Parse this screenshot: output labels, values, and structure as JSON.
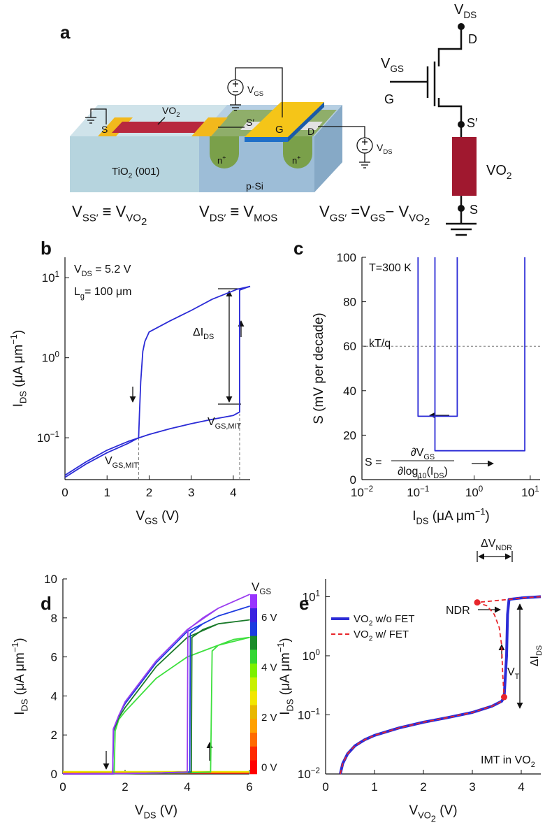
{
  "panel_a": {
    "label": "a",
    "device_labels": {
      "vo2": [
        "VO",
        {
          "sub": "2"
        }
      ],
      "s": "S",
      "s_prime": "S′",
      "g": "G",
      "d": "D",
      "substrate": [
        "TiO",
        {
          "sub": "2"
        },
        " (001)"
      ],
      "silicon": "p-Si",
      "n_left": [
        "n",
        {
          "sup": "+"
        }
      ],
      "n_right": [
        "n",
        {
          "sup": "+"
        }
      ],
      "vgs": [
        "V",
        {
          "sub": "GS"
        }
      ],
      "vds": [
        "V",
        {
          "sub": "DS"
        }
      ]
    },
    "equations": [
      [
        "V",
        {
          "sub": "SS′"
        },
        " ≡ V",
        {
          "sub": "VO"
        },
        {
          "sub2": "2"
        }
      ],
      [
        "V",
        {
          "sub": "DS′"
        },
        " ≡ V",
        {
          "sub": "MOS"
        }
      ],
      [
        "V",
        {
          "sub": "GS′"
        },
        " =V",
        {
          "sub": "GS"
        },
        "− V",
        {
          "sub": "VO"
        },
        {
          "sub2": "2"
        }
      ]
    ],
    "circuit": {
      "vds": [
        "V",
        {
          "sub": "DS"
        }
      ],
      "d": "D",
      "vgs": [
        "V",
        {
          "sub": "GS"
        }
      ],
      "g": "G",
      "s_prime": "S′",
      "vo2": [
        "VO",
        {
          "sub": "2"
        }
      ],
      "s": "S"
    }
  },
  "chart_data": [
    {
      "type": "line",
      "panel_label": "b",
      "xlabel": [
        "V",
        {
          "sub": "GS"
        },
        " (V)"
      ],
      "ylabel": [
        "I",
        {
          "sub": "DS"
        },
        " (μA μm",
        {
          "sup": "−1"
        },
        ")"
      ],
      "xlim": [
        0,
        4.4
      ],
      "xticks": [
        0,
        1,
        2,
        3,
        4
      ],
      "ylog": true,
      "ylim": [
        0.03,
        18
      ],
      "yticks": [
        {
          "value": 0.1,
          "label": [
            "10",
            {
              "sup": "−1"
            }
          ]
        },
        {
          "value": 1,
          "label": [
            "10",
            {
              "sup": "0"
            }
          ]
        },
        {
          "value": 10,
          "label": [
            "10",
            {
              "sup": "1"
            }
          ]
        }
      ],
      "series": [
        {
          "color": "#2b2bd6",
          "x": [
            0,
            0.5,
            1,
            1.5,
            2,
            2.5,
            3,
            3.5,
            4,
            4.15,
            4.15,
            4.3,
            4.4
          ],
          "values": [
            0.034,
            0.05,
            0.07,
            0.09,
            0.11,
            0.13,
            0.15,
            0.17,
            0.19,
            0.21,
            7.0,
            7.5,
            7.8
          ]
        },
        {
          "color": "#2b2bd6",
          "x": [
            4.4,
            4.1,
            3.5,
            3,
            2.5,
            2,
            1.9,
            1.85,
            1.8,
            1.77,
            1.75,
            1.5,
            1,
            0.5,
            0
          ],
          "values": [
            7.8,
            7.2,
            5.4,
            3.9,
            2.9,
            2.1,
            1.6,
            1.2,
            0.5,
            0.2,
            0.1,
            0.085,
            0.065,
            0.047,
            0.032
          ]
        }
      ],
      "guides": [
        {
          "x": 1.75,
          "y": 0.1
        },
        {
          "x": 4.15,
          "y": 0.2
        }
      ],
      "annotations": [
        [
          "V",
          {
            "sub": "DS"
          },
          " = 5.2 V"
        ],
        [
          "L",
          {
            "sub": "g"
          },
          "= 100 μm"
        ],
        [
          "ΔI",
          {
            "sub": "DS"
          }
        ],
        [
          "V",
          {
            "sub": "GS,MIT"
          }
        ],
        [
          "V",
          {
            "sub": "GS,MIT"
          }
        ]
      ]
    },
    {
      "type": "line",
      "panel_label": "c",
      "xlabel": [
        "I",
        {
          "sub": "DS"
        },
        " (μA μm",
        {
          "sup": "−1"
        },
        ")"
      ],
      "ylabel": [
        "S",
        " (mV per decade)"
      ],
      "xlog": true,
      "xlim": [
        0.01,
        15
      ],
      "xticks": [
        {
          "value": 0.01,
          "label": [
            "10",
            {
              "sup": "−2"
            }
          ]
        },
        {
          "value": 0.1,
          "label": [
            "10",
            {
              "sup": "−1"
            }
          ]
        },
        {
          "value": 1,
          "label": [
            "10",
            {
              "sup": "0"
            }
          ]
        },
        {
          "value": 10,
          "label": [
            "10",
            {
              "sup": "1"
            }
          ]
        }
      ],
      "ylim": [
        0,
        100
      ],
      "yticks": [
        0,
        20,
        40,
        60,
        80,
        100
      ],
      "hline": 60,
      "series": [
        {
          "color": "#2b2bd6",
          "x": [
            0.1,
            0.1,
            0.5,
            0.5
          ],
          "values": [
            100,
            28.5,
            28.5,
            100
          ]
        },
        {
          "color": "#2b2bd6",
          "x": [
            0.2,
            0.2,
            8,
            8
          ],
          "values": [
            100,
            13,
            13,
            100
          ]
        }
      ],
      "annotations": [
        "T=300 K",
        "kT/q"
      ],
      "formula": {
        "lhs": "S =",
        "numerator": [
          "∂V",
          {
            "sub": "GS"
          }
        ],
        "denominator": [
          "∂log",
          {
            "sub": "10"
          },
          "(I",
          {
            "sub": "DS"
          },
          ")"
        ]
      }
    },
    {
      "type": "line",
      "panel_label": "d",
      "xlabel": [
        "V",
        {
          "sub": "DS"
        },
        " (V)"
      ],
      "ylabel": [
        "I",
        {
          "sub": "DS"
        },
        " (μA μm",
        {
          "sup": "−1"
        },
        ")"
      ],
      "xlim": [
        0,
        6
      ],
      "xticks": [
        0,
        2,
        4,
        6
      ],
      "ylim": [
        0,
        10
      ],
      "yticks": [
        0,
        2,
        4,
        6,
        8,
        10
      ],
      "series": [
        {
          "color": "#ff2020",
          "x": [
            0,
            6
          ],
          "values": [
            0.04,
            0.04
          ]
        },
        {
          "color": "#ff9900",
          "x": [
            0,
            6
          ],
          "values": [
            0.08,
            0.08
          ]
        },
        {
          "color": "#e6e600",
          "x": [
            0,
            6
          ],
          "values": [
            0.12,
            0.12
          ]
        },
        {
          "color": "#3ee03e",
          "x": [
            0,
            2,
            3,
            4,
            4.75,
            4.8,
            5,
            5.5,
            6,
            5,
            4,
            3,
            2,
            1.8,
            1.68,
            1.65,
            1,
            0
          ],
          "values": [
            0,
            0.02,
            0.04,
            0.06,
            0.1,
            6.3,
            6.6,
            6.9,
            7.0,
            6.6,
            6.0,
            4.9,
            3.2,
            2.8,
            2.2,
            0,
            0,
            0
          ]
        },
        {
          "color": "#1a7a2a",
          "x": [
            0,
            2,
            3,
            4.13,
            4.15,
            4.5,
            5,
            6,
            5,
            4,
            3,
            2,
            1.8,
            1.63,
            1.6,
            1,
            0
          ],
          "values": [
            0,
            0.02,
            0.05,
            0.1,
            7.0,
            7.4,
            7.7,
            7.9,
            7.7,
            7.0,
            5.5,
            3.4,
            2.9,
            2.2,
            0,
            0,
            0
          ]
        },
        {
          "color": "#1f3de0",
          "x": [
            0,
            2,
            3,
            4.08,
            4.1,
            4.5,
            5,
            6,
            5,
            4,
            3,
            2,
            1.8,
            1.63,
            1.6,
            1,
            0
          ],
          "values": [
            0,
            0.02,
            0.05,
            0.1,
            7.2,
            7.7,
            8.1,
            8.6,
            8.1,
            7.3,
            5.7,
            3.6,
            3.0,
            2.3,
            0,
            0,
            0
          ]
        },
        {
          "color": "#9a3cf0",
          "x": [
            0,
            2,
            3,
            4,
            4.02,
            4.5,
            5,
            6,
            5,
            4,
            3,
            2,
            1.8,
            1.62,
            1.6,
            1,
            0
          ],
          "values": [
            0,
            0.02,
            0.05,
            0.1,
            7.4,
            8.0,
            8.5,
            9.2,
            8.5,
            7.4,
            5.8,
            3.7,
            3.0,
            2.3,
            0,
            0,
            0
          ]
        }
      ],
      "colorbar": {
        "title": [
          "V",
          {
            "sub": "GS"
          }
        ],
        "range": [
          -0.3,
          6.9
        ],
        "colors": [
          "#ff0000",
          "#ff2a00",
          "#ff6a00",
          "#ffa000",
          "#e8b800",
          "#f2e600",
          "#c8f000",
          "#7cf000",
          "#33d633",
          "#1a8c2a",
          "#1a3be0",
          "#3a22e0",
          "#9933ff"
        ],
        "ticks": [
          {
            "value": 0,
            "label": "0 V"
          },
          {
            "value": 2,
            "label": "2 V"
          },
          {
            "value": 4,
            "label": "4 V"
          },
          {
            "value": 6,
            "label": "6 V"
          }
        ]
      }
    },
    {
      "type": "line",
      "panel_label": "e",
      "xlabel": [
        "V",
        {
          "sub": "VO"
        },
        {
          "sub2": "2"
        },
        " (V)"
      ],
      "ylabel": [
        "I",
        {
          "sub": "DS"
        },
        " (μA μm",
        {
          "sup": "−1"
        },
        ")"
      ],
      "xlim": [
        0,
        4.4
      ],
      "xticks": [
        0,
        1,
        2,
        3,
        4
      ],
      "ylog": true,
      "ylim": [
        0.01,
        20
      ],
      "yticks": [
        {
          "value": 0.01,
          "label": [
            "10",
            {
              "sup": "−2"
            }
          ]
        },
        {
          "value": 0.1,
          "label": [
            "10",
            {
              "sup": "−1"
            }
          ]
        },
        {
          "value": 1,
          "label": [
            "10",
            {
              "sup": "0"
            }
          ]
        },
        {
          "value": 10,
          "label": [
            "10",
            {
              "sup": "1"
            }
          ]
        }
      ],
      "legend": "upper left",
      "series": [
        {
          "name": [
            "VO",
            {
              "sub": "2"
            },
            " w/o FET"
          ],
          "color": "#2b2bd6",
          "linewidth": 4,
          "x": [
            0.3,
            0.35,
            0.45,
            0.6,
            0.8,
            1,
            1.5,
            2,
            2.5,
            3,
            3.4,
            3.6,
            3.65,
            3.7,
            3.72,
            3.75,
            4,
            4.4
          ],
          "values": [
            0.01,
            0.015,
            0.022,
            0.03,
            0.038,
            0.045,
            0.06,
            0.075,
            0.09,
            0.11,
            0.14,
            0.17,
            0.2,
            1,
            5,
            9,
            9.5,
            10
          ]
        },
        {
          "name": [
            "VO",
            {
              "sub": "2"
            },
            " w/ FET"
          ],
          "color": "#e8262b",
          "dash": true,
          "x": [
            0.3,
            0.35,
            0.45,
            0.6,
            0.8,
            1,
            1.5,
            2,
            2.5,
            3,
            3.4,
            3.6,
            3.65,
            3.62,
            3.6,
            3.55,
            3.45,
            3.3,
            3.1,
            3.75,
            4,
            4.4
          ],
          "values": [
            0.01,
            0.015,
            0.022,
            0.03,
            0.038,
            0.045,
            0.06,
            0.075,
            0.09,
            0.11,
            0.14,
            0.17,
            0.2,
            0.5,
            1.5,
            3,
            5,
            7,
            8,
            9,
            9.5,
            10
          ]
        }
      ],
      "points": [
        {
          "x": 3.1,
          "y": 8
        },
        {
          "x": 3.65,
          "y": 0.2
        }
      ],
      "points_color": "#e8262b",
      "annotations": [
        [
          "ΔV",
          {
            "sub": "NDR"
          }
        ],
        [
          "ΔI",
          {
            "sub": "DS"
          }
        ],
        "NDR",
        [
          "V",
          {
            "sub": "T"
          }
        ],
        [
          "IMT in VO",
          {
            "sub": "2"
          }
        ]
      ]
    }
  ]
}
